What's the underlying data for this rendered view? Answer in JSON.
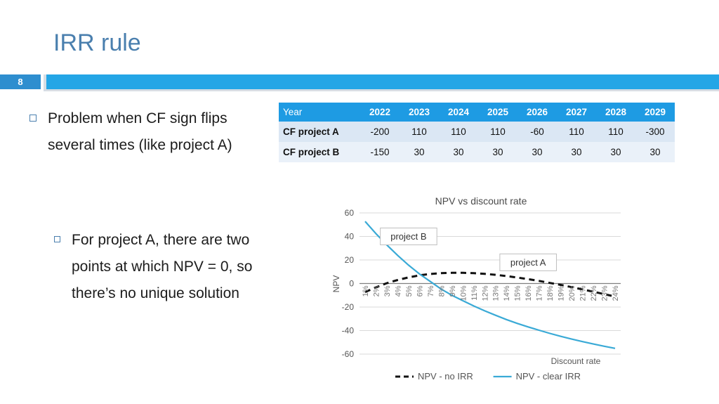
{
  "slide": {
    "title": "IRR rule",
    "number": "8",
    "bullets": [
      "Problem when CF sign flips several times (like project A)",
      "For project A, there are two points at which NPV = 0, so there’s no unique solution"
    ]
  },
  "table": {
    "header_label": "Year",
    "years": [
      "2022",
      "2023",
      "2024",
      "2025",
      "2026",
      "2027",
      "2028",
      "2029"
    ],
    "rows": [
      {
        "label": "CF project A",
        "values": [
          "-200",
          "110",
          "110",
          "110",
          "-60",
          "110",
          "110",
          "-300"
        ]
      },
      {
        "label": "CF project B",
        "values": [
          "-150",
          "30",
          "30",
          "30",
          "30",
          "30",
          "30",
          "30"
        ]
      }
    ]
  },
  "chart_data": {
    "type": "line",
    "title": "NPV vs discount rate",
    "xlabel": "Discount rate",
    "ylabel": "NPV",
    "x": [
      "1%",
      "2%",
      "3%",
      "4%",
      "5%",
      "6%",
      "7%",
      "8%",
      "9%",
      "10%",
      "11%",
      "12%",
      "13%",
      "14%",
      "15%",
      "16%",
      "17%",
      "18%",
      "19%",
      "20%",
      "21%",
      "22%",
      "23%",
      "24%"
    ],
    "ylim": [
      -60,
      60
    ],
    "yticks": [
      60,
      40,
      20,
      0,
      -20,
      -40,
      -60
    ],
    "grid": true,
    "legend": "bottom",
    "series": [
      {
        "name": "NPV - no IRR",
        "style": "dashed",
        "color": "#111111",
        "values": [
          -7.3,
          -3.2,
          0.3,
          3.0,
          5.2,
          6.9,
          8.1,
          8.8,
          9.1,
          9.1,
          8.8,
          8.2,
          7.4,
          6.3,
          5.1,
          3.7,
          2.2,
          0.5,
          -1.2,
          -3.1,
          -5.0,
          -7.0,
          -9.0,
          -11.1
        ]
      },
      {
        "name": "NPV - clear IRR",
        "style": "solid",
        "color": "#3aaad6",
        "values": [
          52.8,
          42.3,
          32.7,
          23.8,
          15.6,
          8.1,
          1.7,
          -4.7,
          -10.1,
          -14.6,
          -19.1,
          -23.2,
          -27.0,
          -30.6,
          -33.9,
          -36.9,
          -39.7,
          -42.4,
          -44.9,
          -47.2,
          -49.4,
          -51.4,
          -53.3,
          -55.1
        ]
      }
    ],
    "annotations": [
      {
        "text": "project B",
        "x": "5%",
        "y": 40
      },
      {
        "text": "project A",
        "x": "16%",
        "y": 18
      }
    ]
  }
}
